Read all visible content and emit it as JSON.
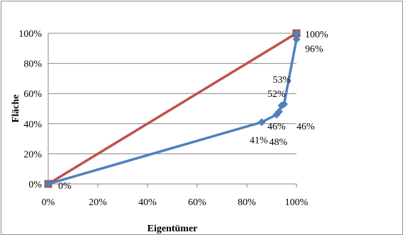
{
  "chart_data": {
    "type": "line",
    "xlabel": "Eigentümer",
    "ylabel": "Fläche",
    "xlim": [
      0,
      100
    ],
    "ylim": [
      0,
      100
    ],
    "x_ticks": [
      "0%",
      "20%",
      "40%",
      "60%",
      "80%",
      "100%"
    ],
    "y_ticks": [
      "0%",
      "20%",
      "40%",
      "60%",
      "80%",
      "100%"
    ],
    "grid": "horizontal",
    "legend": "none",
    "series": [
      {
        "color": "#c0504d",
        "marker": "square",
        "points": [
          [
            0,
            0
          ],
          [
            100,
            100
          ]
        ]
      },
      {
        "color": "#4f81bd",
        "marker": "diamond",
        "points": [
          [
            0,
            0
          ],
          [
            86,
            41
          ],
          [
            92,
            46
          ],
          [
            93,
            48
          ],
          [
            94,
            52
          ],
          [
            95,
            53
          ],
          [
            100,
            96
          ],
          [
            100,
            100
          ]
        ]
      }
    ],
    "data_labels": [
      {
        "text": "0%",
        "x": 0,
        "y": 0
      },
      {
        "text": "41%",
        "x": 86,
        "y": 41
      },
      {
        "text": "46%",
        "x": 92,
        "y": 46
      },
      {
        "text": "46%",
        "x": 92,
        "y": 46
      },
      {
        "text": "48%",
        "x": 93,
        "y": 48
      },
      {
        "text": "52%",
        "x": 94,
        "y": 52
      },
      {
        "text": "53%",
        "x": 95,
        "y": 53
      },
      {
        "text": "96%",
        "x": 100,
        "y": 96
      },
      {
        "text": "100%",
        "x": 100,
        "y": 100
      }
    ]
  }
}
